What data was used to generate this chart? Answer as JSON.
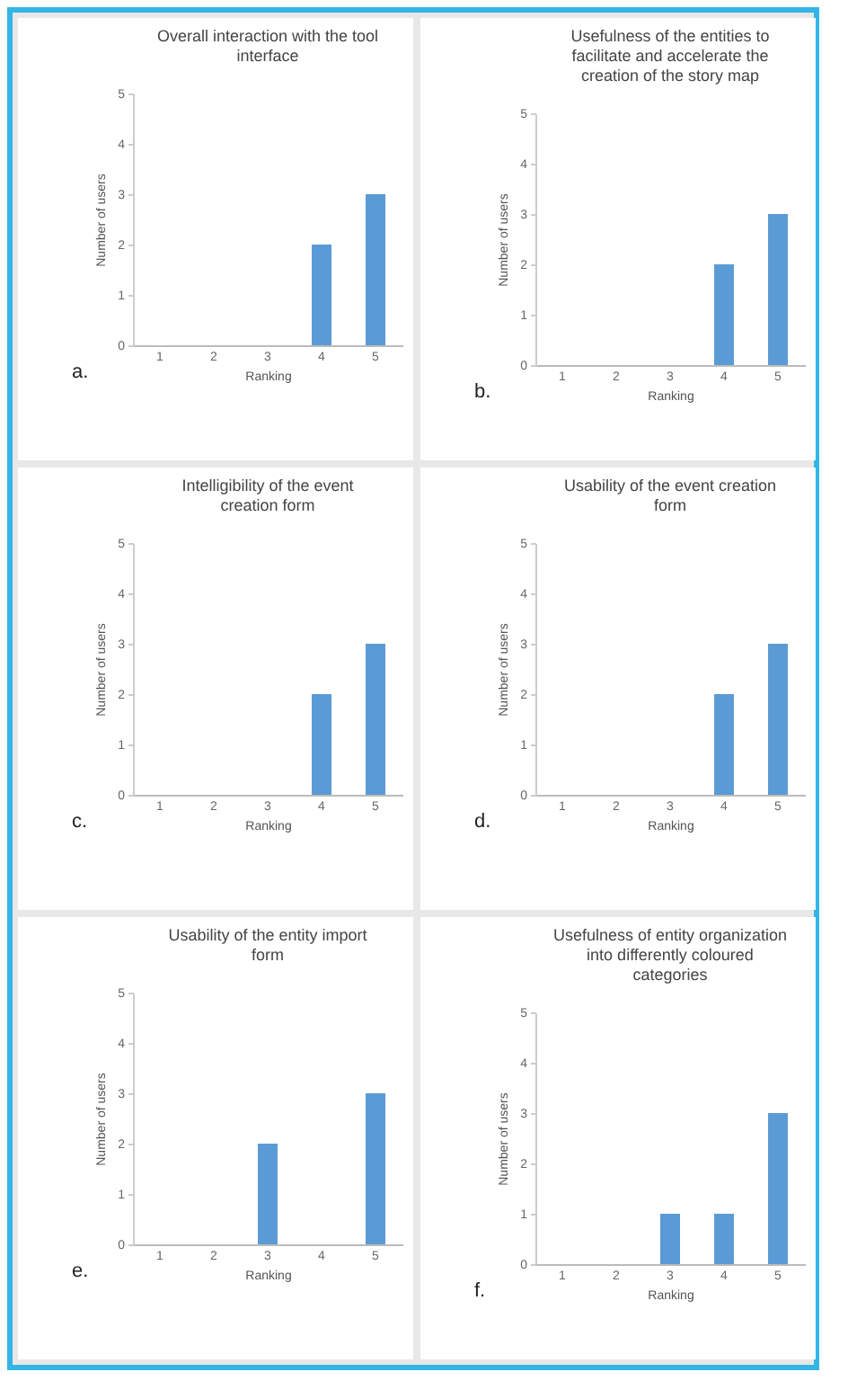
{
  "chart_data": [
    {
      "type": "bar",
      "title": "Overall interaction with the tool interface",
      "xlabel": "Ranking",
      "ylabel": "Number of users",
      "categories": [
        "1",
        "2",
        "3",
        "4",
        "5"
      ],
      "values": [
        0,
        0,
        0,
        2,
        3
      ],
      "color": "#5b9bd5",
      "ylim": [
        0,
        5
      ],
      "yticks": [
        0,
        1,
        2,
        3,
        4,
        5
      ],
      "annotations": [
        "a."
      ]
    },
    {
      "type": "bar",
      "title": "Usefulness of the entities to facilitate and accelerate the creation of the story map",
      "xlabel": "Ranking",
      "ylabel": "Number of users",
      "categories": [
        "1",
        "2",
        "3",
        "4",
        "5"
      ],
      "values": [
        0,
        0,
        0,
        2,
        3
      ],
      "color": "#5b9bd5",
      "ylim": [
        0,
        5
      ],
      "yticks": [
        0,
        1,
        2,
        3,
        4,
        5
      ],
      "annotations": [
        "b."
      ]
    },
    {
      "type": "bar",
      "title": "Intelligibility of the event creation form",
      "xlabel": "Ranking",
      "ylabel": "Number of users",
      "categories": [
        "1",
        "2",
        "3",
        "4",
        "5"
      ],
      "values": [
        0,
        0,
        0,
        2,
        3
      ],
      "color": "#5b9bd5",
      "ylim": [
        0,
        5
      ],
      "yticks": [
        0,
        1,
        2,
        3,
        4,
        5
      ],
      "annotations": [
        "c."
      ]
    },
    {
      "type": "bar",
      "title": "Usability of the event creation form",
      "xlabel": "Ranking",
      "ylabel": "Number of users",
      "categories": [
        "1",
        "2",
        "3",
        "4",
        "5"
      ],
      "values": [
        0,
        0,
        0,
        2,
        3
      ],
      "color": "#5b9bd5",
      "ylim": [
        0,
        5
      ],
      "yticks": [
        0,
        1,
        2,
        3,
        4,
        5
      ],
      "annotations": [
        "d."
      ]
    },
    {
      "type": "bar",
      "title": "Usability of the entity import form",
      "xlabel": "Ranking",
      "ylabel": "Number of users",
      "categories": [
        "1",
        "2",
        "3",
        "4",
        "5"
      ],
      "values": [
        0,
        0,
        2,
        0,
        3
      ],
      "color": "#5b9bd5",
      "ylim": [
        0,
        5
      ],
      "yticks": [
        0,
        1,
        2,
        3,
        4,
        5
      ],
      "annotations": [
        "e."
      ]
    },
    {
      "type": "bar",
      "title": "Usefulness of entity organization into differently coloured categories",
      "xlabel": "Ranking",
      "ylabel": "Number of users",
      "categories": [
        "1",
        "2",
        "3",
        "4",
        "5"
      ],
      "values": [
        0,
        0,
        1,
        1,
        3
      ],
      "color": "#5b9bd5",
      "ylim": [
        0,
        5
      ],
      "yticks": [
        0,
        1,
        2,
        3,
        4,
        5
      ],
      "annotations": [
        "f."
      ]
    }
  ]
}
